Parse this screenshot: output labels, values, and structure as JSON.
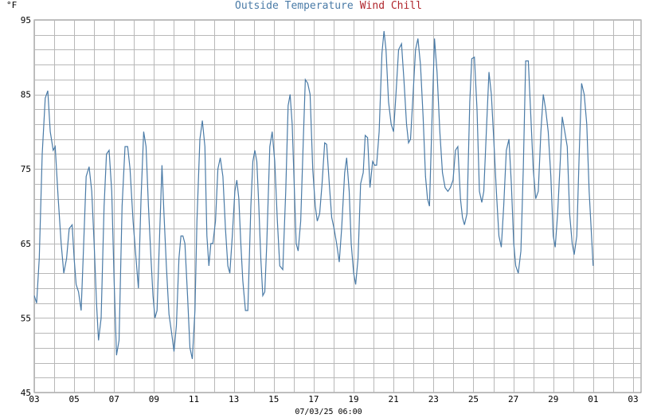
{
  "chart_data": {
    "type": "line",
    "unit_label": "°F",
    "legend": [
      {
        "name": "Outside Temperature",
        "color": "#4a7ba7"
      },
      {
        "name": "Wind Chill",
        "color": "#b0262c"
      }
    ],
    "y_range": [
      45,
      95
    ],
    "y_ticks": [
      45,
      55,
      65,
      75,
      85,
      95
    ],
    "x_range": [
      0,
      30.4
    ],
    "x_ticks": [
      {
        "x": 0,
        "label": "03"
      },
      {
        "x": 2,
        "label": "05"
      },
      {
        "x": 4,
        "label": "07"
      },
      {
        "x": 6,
        "label": "09"
      },
      {
        "x": 8,
        "label": "11"
      },
      {
        "x": 10,
        "label": "13"
      },
      {
        "x": 12,
        "label": "15"
      },
      {
        "x": 14,
        "label": "17"
      },
      {
        "x": 16,
        "label": "19"
      },
      {
        "x": 18,
        "label": "21"
      },
      {
        "x": 20,
        "label": "23"
      },
      {
        "x": 22,
        "label": "25"
      },
      {
        "x": 24,
        "label": "27"
      },
      {
        "x": 26,
        "label": "29"
      },
      {
        "x": 28,
        "label": "01"
      },
      {
        "x": 30,
        "label": "03"
      }
    ],
    "x_caption": "07/03/25 06:00",
    "grid": true,
    "series": [
      {
        "name": "Outside Temperature",
        "color": "#4a7ba7",
        "points": [
          [
            0.0,
            58.0
          ],
          [
            0.12,
            57.0
          ],
          [
            0.25,
            63.0
          ],
          [
            0.4,
            77.0
          ],
          [
            0.55,
            84.5
          ],
          [
            0.68,
            85.5
          ],
          [
            0.8,
            80.0
          ],
          [
            0.95,
            77.5
          ],
          [
            1.05,
            78.0
          ],
          [
            1.2,
            71.0
          ],
          [
            1.35,
            65.0
          ],
          [
            1.48,
            61.0
          ],
          [
            1.62,
            63.0
          ],
          [
            1.75,
            67.0
          ],
          [
            1.9,
            67.5
          ],
          [
            2.0,
            63.0
          ],
          [
            2.1,
            59.5
          ],
          [
            2.22,
            58.5
          ],
          [
            2.35,
            56.0
          ],
          [
            2.45,
            63.0
          ],
          [
            2.6,
            74.0
          ],
          [
            2.75,
            75.3
          ],
          [
            2.88,
            72.0
          ],
          [
            3.0,
            65.0
          ],
          [
            3.12,
            57.0
          ],
          [
            3.22,
            52.0
          ],
          [
            3.35,
            55.0
          ],
          [
            3.5,
            70.0
          ],
          [
            3.62,
            77.0
          ],
          [
            3.75,
            77.5
          ],
          [
            3.88,
            72.0
          ],
          [
            4.0,
            60.0
          ],
          [
            4.12,
            50.0
          ],
          [
            4.25,
            52.0
          ],
          [
            4.4,
            70.0
          ],
          [
            4.55,
            78.0
          ],
          [
            4.68,
            78.0
          ],
          [
            4.8,
            75.0
          ],
          [
            4.95,
            68.0
          ],
          [
            5.1,
            63.0
          ],
          [
            5.22,
            59.0
          ],
          [
            5.35,
            71.0
          ],
          [
            5.48,
            80.0
          ],
          [
            5.6,
            78.0
          ],
          [
            5.72,
            70.0
          ],
          [
            5.85,
            63.0
          ],
          [
            5.95,
            58.0
          ],
          [
            6.05,
            55.0
          ],
          [
            6.15,
            56.0
          ],
          [
            6.28,
            66.0
          ],
          [
            6.4,
            75.5
          ],
          [
            6.5,
            69.0
          ],
          [
            6.62,
            62.0
          ],
          [
            6.75,
            55.5
          ],
          [
            6.88,
            53.0
          ],
          [
            7.0,
            50.5
          ],
          [
            7.12,
            54.0
          ],
          [
            7.25,
            63.0
          ],
          [
            7.35,
            66.0
          ],
          [
            7.45,
            66.0
          ],
          [
            7.55,
            65.0
          ],
          [
            7.68,
            58.0
          ],
          [
            7.8,
            51.0
          ],
          [
            7.92,
            49.5
          ],
          [
            8.05,
            56.0
          ],
          [
            8.15,
            68.0
          ],
          [
            8.3,
            79.0
          ],
          [
            8.42,
            81.5
          ],
          [
            8.55,
            78.0
          ],
          [
            8.65,
            66.0
          ],
          [
            8.75,
            62.0
          ],
          [
            8.85,
            65.0
          ],
          [
            8.95,
            65.0
          ],
          [
            9.08,
            68.0
          ],
          [
            9.2,
            75.0
          ],
          [
            9.32,
            76.5
          ],
          [
            9.45,
            74.0
          ],
          [
            9.58,
            67.0
          ],
          [
            9.7,
            62.0
          ],
          [
            9.8,
            61.0
          ],
          [
            9.92,
            66.0
          ],
          [
            10.05,
            72.0
          ],
          [
            10.15,
            73.5
          ],
          [
            10.25,
            71.0
          ],
          [
            10.35,
            65.0
          ],
          [
            10.45,
            60.0
          ],
          [
            10.58,
            56.0
          ],
          [
            10.7,
            56.0
          ],
          [
            10.85,
            70.0
          ],
          [
            10.95,
            76.0
          ],
          [
            11.05,
            77.5
          ],
          [
            11.15,
            76.0
          ],
          [
            11.25,
            70.0
          ],
          [
            11.35,
            63.0
          ],
          [
            11.45,
            58.0
          ],
          [
            11.55,
            58.5
          ],
          [
            11.65,
            65.0
          ],
          [
            11.8,
            78.0
          ],
          [
            11.92,
            80.0
          ],
          [
            12.05,
            76.0
          ],
          [
            12.18,
            68.0
          ],
          [
            12.3,
            62.0
          ],
          [
            12.45,
            61.5
          ],
          [
            12.6,
            72.0
          ],
          [
            12.72,
            83.5
          ],
          [
            12.82,
            85.0
          ],
          [
            12.92,
            81.0
          ],
          [
            13.02,
            73.0
          ],
          [
            13.12,
            65.0
          ],
          [
            13.22,
            64.0
          ],
          [
            13.35,
            68.0
          ],
          [
            13.48,
            79.0
          ],
          [
            13.58,
            87.0
          ],
          [
            13.7,
            86.5
          ],
          [
            13.82,
            85.0
          ],
          [
            13.95,
            75.0
          ],
          [
            14.08,
            70.0
          ],
          [
            14.18,
            68.0
          ],
          [
            14.3,
            69.0
          ],
          [
            14.42,
            73.0
          ],
          [
            14.55,
            78.5
          ],
          [
            14.65,
            78.3
          ],
          [
            14.78,
            73.0
          ],
          [
            14.9,
            68.5
          ],
          [
            15.02,
            67.0
          ],
          [
            15.15,
            65.0
          ],
          [
            15.28,
            62.5
          ],
          [
            15.4,
            67.0
          ],
          [
            15.55,
            74.5
          ],
          [
            15.65,
            76.5
          ],
          [
            15.78,
            72.0
          ],
          [
            15.88,
            65.0
          ],
          [
            16.0,
            61.0
          ],
          [
            16.1,
            59.5
          ],
          [
            16.22,
            63.0
          ],
          [
            16.35,
            73.0
          ],
          [
            16.48,
            74.5
          ],
          [
            16.58,
            79.5
          ],
          [
            16.7,
            79.2
          ],
          [
            16.82,
            72.5
          ],
          [
            16.95,
            76.0
          ],
          [
            17.05,
            75.5
          ],
          [
            17.15,
            75.5
          ],
          [
            17.28,
            80.0
          ],
          [
            17.42,
            90.5
          ],
          [
            17.52,
            93.5
          ],
          [
            17.62,
            91.0
          ],
          [
            17.75,
            84.0
          ],
          [
            17.88,
            81.0
          ],
          [
            18.0,
            80.0
          ],
          [
            18.12,
            85.0
          ],
          [
            18.25,
            91.0
          ],
          [
            18.4,
            91.8
          ],
          [
            18.52,
            87.0
          ],
          [
            18.65,
            81.0
          ],
          [
            18.75,
            78.5
          ],
          [
            18.85,
            79.0
          ],
          [
            18.98,
            85.0
          ],
          [
            19.1,
            91.0
          ],
          [
            19.22,
            92.5
          ],
          [
            19.35,
            89.0
          ],
          [
            19.48,
            82.0
          ],
          [
            19.6,
            74.0
          ],
          [
            19.7,
            71.0
          ],
          [
            19.8,
            70.0
          ],
          [
            19.92,
            81.0
          ],
          [
            20.05,
            92.5
          ],
          [
            20.18,
            88.0
          ],
          [
            20.32,
            80.0
          ],
          [
            20.45,
            74.5
          ],
          [
            20.58,
            72.5
          ],
          [
            20.72,
            72.0
          ],
          [
            20.85,
            72.5
          ],
          [
            20.98,
            73.5
          ],
          [
            21.1,
            77.5
          ],
          [
            21.22,
            78.0
          ],
          [
            21.35,
            71.0
          ],
          [
            21.45,
            68.5
          ],
          [
            21.55,
            67.5
          ],
          [
            21.68,
            69.0
          ],
          [
            21.82,
            84.0
          ],
          [
            21.92,
            89.8
          ],
          [
            22.05,
            90.0
          ],
          [
            22.18,
            83.0
          ],
          [
            22.3,
            72.0
          ],
          [
            22.42,
            70.5
          ],
          [
            22.52,
            72.0
          ],
          [
            22.65,
            80.0
          ],
          [
            22.78,
            88.0
          ],
          [
            22.9,
            85.0
          ],
          [
            23.02,
            79.0
          ],
          [
            23.15,
            72.0
          ],
          [
            23.28,
            66.0
          ],
          [
            23.4,
            64.5
          ],
          [
            23.52,
            70.0
          ],
          [
            23.65,
            77.5
          ],
          [
            23.78,
            79.0
          ],
          [
            23.9,
            73.0
          ],
          [
            24.02,
            65.0
          ],
          [
            24.12,
            62.0
          ],
          [
            24.25,
            61.0
          ],
          [
            24.38,
            64.0
          ],
          [
            24.5,
            75.0
          ],
          [
            24.62,
            89.5
          ],
          [
            24.75,
            89.5
          ],
          [
            24.88,
            82.0
          ],
          [
            25.0,
            75.0
          ],
          [
            25.12,
            71.0
          ],
          [
            25.25,
            72.0
          ],
          [
            25.38,
            80.0
          ],
          [
            25.5,
            85.0
          ],
          [
            25.62,
            83.0
          ],
          [
            25.75,
            80.0
          ],
          [
            25.88,
            74.0
          ],
          [
            26.0,
            66.0
          ],
          [
            26.1,
            64.5
          ],
          [
            26.22,
            69.0
          ],
          [
            26.35,
            76.0
          ],
          [
            26.45,
            82.0
          ],
          [
            26.58,
            80.0
          ],
          [
            26.7,
            78.0
          ],
          [
            26.82,
            69.0
          ],
          [
            26.95,
            65.0
          ],
          [
            27.05,
            63.5
          ],
          [
            27.18,
            66.0
          ],
          [
            27.3,
            77.0
          ],
          [
            27.42,
            86.5
          ],
          [
            27.55,
            85.0
          ],
          [
            27.68,
            81.0
          ],
          [
            27.8,
            72.0
          ],
          [
            27.92,
            66.0
          ],
          [
            28.0,
            62.0
          ]
        ]
      }
    ]
  }
}
